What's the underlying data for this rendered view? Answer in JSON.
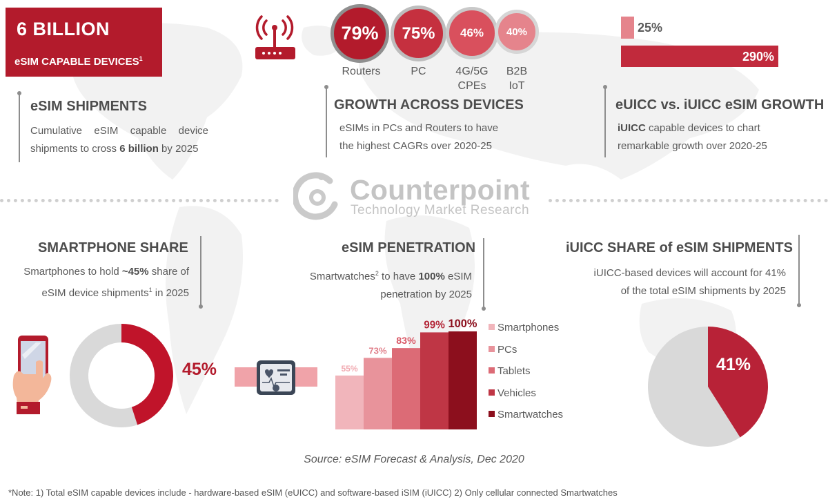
{
  "headline": {
    "big": "6 BILLION",
    "small": "eSIM CAPABLE DEVICES",
    "small_sup": "1"
  },
  "esim_shipments": {
    "title": "eSIM SHIPMENTS",
    "line1": "Cumulative eSIM capable device",
    "line2_pre": "shipments to cross ",
    "line2_bold": "6 billion",
    "line2_post": " by 2025"
  },
  "growth": {
    "title": "GROWTH ACROSS DEVICES",
    "line1": "eSIMs in PCs and Routers to have",
    "line2": "the highest CAGRs over 2020-25",
    "circles": [
      {
        "value": "79%",
        "label": "Routers",
        "color": "#b31b2c"
      },
      {
        "value": "75%",
        "label": "PC",
        "color": "#c5303f"
      },
      {
        "value": "46%",
        "label": "4G/5G CPEs",
        "label_line1": "4G/5G",
        "label_line2": "CPEs",
        "color": "#d9505d"
      },
      {
        "value": "40%",
        "label": "B2B IoT",
        "label_line1": "B2B",
        "label_line2": "IoT",
        "color": "#e5848c"
      }
    ]
  },
  "euicc_growth": {
    "title": "eUICC vs. iUICC eSIM GROWTH",
    "line1_bold": "iUICC",
    "line1_rest": " capable devices to chart",
    "line2": "remarkable growth over 2020-25",
    "bars": [
      {
        "value": 25,
        "label": "25%",
        "color": "#e5848c"
      },
      {
        "value": 290,
        "label": "290%",
        "color": "#c12a3c"
      }
    ]
  },
  "logo": {
    "name": "Counterpoint",
    "tagline": "Technology Market Research"
  },
  "smartphone_share": {
    "title": "SMARTPHONE SHARE",
    "line1_pre": "Smartphones to hold ",
    "line1_bold": "~45%",
    "line1_post": " share of",
    "line2_pre": "eSIM device shipments",
    "line2_sup": "1",
    "line2_post": " in 2025",
    "share": 45,
    "share_label": "45%",
    "colors": {
      "share": "#c0142a",
      "rest": "#d9d9d9"
    }
  },
  "esim_penetration": {
    "title": "eSIM PENETRATION",
    "line1_pre": "Smartwatches",
    "line1_sup": "2",
    "line1_mid": " to have ",
    "line1_bold": "100%",
    "line1_post": " eSIM",
    "line2": "penetration by 2025"
  },
  "chart_data": {
    "type": "bar",
    "categories": [
      "Smartphones",
      "PCs",
      "Tablets",
      "Vehicles",
      "Smartwatches"
    ],
    "values": [
      55,
      73,
      83,
      99,
      100
    ],
    "value_labels": [
      "55%",
      "73%",
      "83%",
      "99%",
      "100%"
    ],
    "colors": [
      "#f1b5bb",
      "#e8939b",
      "#dc6b76",
      "#bf3645",
      "#8c0f1d"
    ],
    "label_colors": [
      "#f1aab1",
      "#e07d88",
      "#d95866",
      "#b32436",
      "#8c0f1d"
    ],
    "ylim": [
      0,
      100
    ],
    "legend": "right",
    "grid": false
  },
  "iuicc_share": {
    "title": "iUICC SHARE of eSIM SHIPMENTS",
    "line1": "iUICC-based devices will account for 41%",
    "line2": "of the total eSIM shipments by 2025",
    "share": 41,
    "share_label": "41%",
    "colors": {
      "share": "#b82237",
      "rest": "#d9d9d9"
    }
  },
  "source": "Source: eSIM Forecast & Analysis, Dec 2020",
  "note": "*Note: 1) Total eSIM capable devices include - hardware-based eSIM (eUICC) and software-based iSIM (iUICC) 2) Only cellular connected Smartwatches",
  "icons": [
    "router-icon",
    "smartwatch-icon",
    "hand-phone-icon",
    "counterpoint-logo-icon",
    "world-map-icon"
  ]
}
